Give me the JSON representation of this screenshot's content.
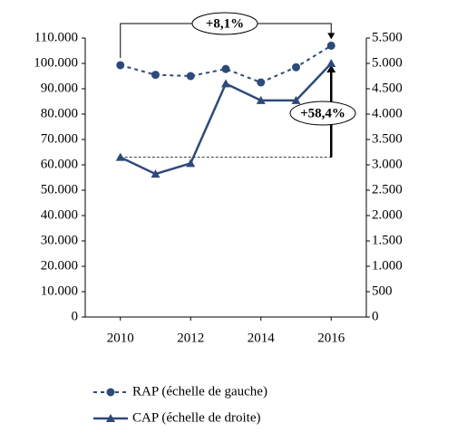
{
  "chart_data": {
    "type": "line",
    "x": [
      2010,
      2011,
      2012,
      2013,
      2014,
      2015,
      2016
    ],
    "xlim": [
      2009,
      2017
    ],
    "xticks": [
      2010,
      2012,
      2014,
      2016
    ],
    "ylim": [
      0,
      110000
    ],
    "yticks": [
      0,
      {
        "value": 10000,
        "label": "10.000"
      },
      {
        "value": 20000,
        "label": "20.000"
      },
      {
        "value": 30000,
        "label": "30.000"
      },
      {
        "value": 40000,
        "label": "40.000"
      },
      {
        "value": 50000,
        "label": "50.000"
      },
      {
        "value": 60000,
        "label": "60.000"
      },
      {
        "value": 70000,
        "label": "70.000"
      },
      {
        "value": 80000,
        "label": "80.000"
      },
      {
        "value": 90000,
        "label": "90.000"
      },
      {
        "value": 100000,
        "label": "100.000"
      },
      {
        "value": 110000,
        "label": "110.000"
      }
    ],
    "y2lim": [
      0,
      5500
    ],
    "y2ticks": [
      0,
      500,
      {
        "value": 1000,
        "label": "1.000"
      },
      {
        "value": 1500,
        "label": "1.500"
      },
      {
        "value": 2000,
        "label": "2.000"
      },
      {
        "value": 2500,
        "label": "2.500"
      },
      {
        "value": 3000,
        "label": "3.000"
      },
      {
        "value": 3500,
        "label": "3.500"
      },
      {
        "value": 4000,
        "label": "4.000"
      },
      {
        "value": 4500,
        "label": "4.500"
      },
      {
        "value": 5000,
        "label": "5.000"
      },
      {
        "value": 5500,
        "label": "5.500"
      }
    ],
    "series": [
      {
        "name": "RAP (échelle de gauche)",
        "color": "#2e4a7a",
        "values": [
          99300,
          95500,
          95000,
          97800,
          92500,
          98500,
          107000
        ]
      },
      {
        "name": "CAP (échelle de droite)",
        "color": "#2e4a7a",
        "axis": "y2",
        "values": [
          3150,
          2820,
          3030,
          4600,
          4270,
          4270,
          5000
        ]
      }
    ],
    "annotations": [
      "+8,1%",
      "+58,4%"
    ]
  }
}
